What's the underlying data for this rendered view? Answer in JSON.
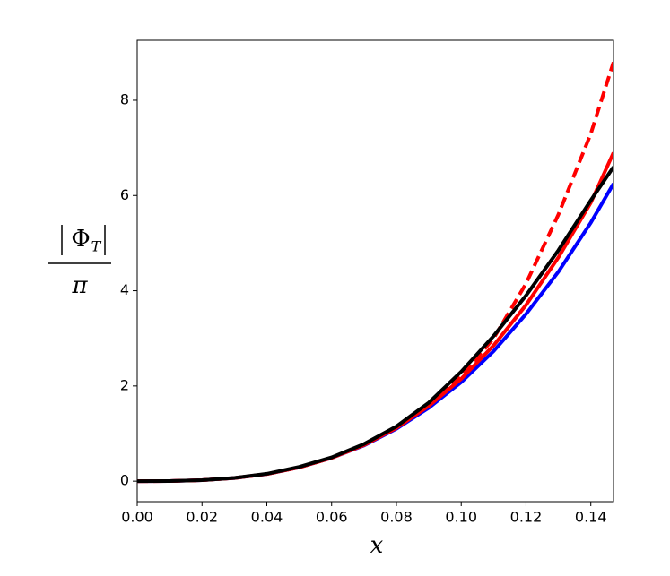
{
  "chart_data": {
    "type": "line",
    "xlabel": "x",
    "ylabel": {
      "numerator": "Φ",
      "subscript": "T",
      "denominator": "π"
    },
    "x": [
      0,
      0.01,
      0.02,
      0.03,
      0.04,
      0.05,
      0.06,
      0.07,
      0.08,
      0.09,
      0.1,
      0.11,
      0.12,
      0.13,
      0.14,
      0.147
    ],
    "series": [
      {
        "color": "#0000ff",
        "dash": "solid",
        "values": [
          0,
          0.003,
          0.021,
          0.067,
          0.15,
          0.29,
          0.49,
          0.75,
          1.1,
          1.54,
          2.08,
          2.73,
          3.51,
          4.4,
          5.43,
          6.25
        ]
      },
      {
        "color": "#ff0000",
        "dash": "solid",
        "values": [
          0,
          0.003,
          0.021,
          0.067,
          0.15,
          0.29,
          0.49,
          0.76,
          1.12,
          1.58,
          2.15,
          2.85,
          3.7,
          4.7,
          5.85,
          6.9
        ]
      },
      {
        "color": "#ff0000",
        "dash": "dashed",
        "values": [
          0,
          0.003,
          0.021,
          0.067,
          0.15,
          0.29,
          0.49,
          0.76,
          1.12,
          1.6,
          2.2,
          3.0,
          4.15,
          5.6,
          7.3,
          8.8
        ]
      },
      {
        "color": "#000000",
        "dash": "solid",
        "values": [
          0,
          0.003,
          0.021,
          0.068,
          0.155,
          0.3,
          0.5,
          0.78,
          1.15,
          1.65,
          2.3,
          3.05,
          3.9,
          4.85,
          5.9,
          6.6
        ]
      }
    ],
    "xlim": [
      0,
      0.147
    ],
    "ylim": [
      -0.43,
      9.26
    ],
    "xticks": [
      {
        "value": 0,
        "label": "0.00"
      },
      {
        "value": 0.02,
        "label": "0.02"
      },
      {
        "value": 0.04,
        "label": "0.04"
      },
      {
        "value": 0.06,
        "label": "0.06"
      },
      {
        "value": 0.08,
        "label": "0.08"
      },
      {
        "value": 0.1,
        "label": "0.10"
      },
      {
        "value": 0.12,
        "label": "0.12"
      },
      {
        "value": 0.14,
        "label": "0.14"
      }
    ],
    "yticks": [
      0,
      2,
      4,
      6,
      8
    ],
    "grid": false
  }
}
